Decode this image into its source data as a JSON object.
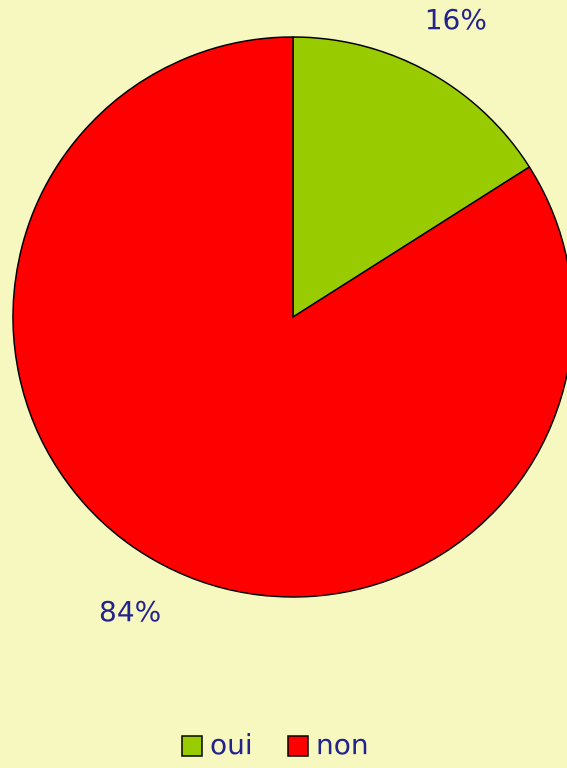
{
  "chart_data": {
    "type": "pie",
    "categories": [
      "oui",
      "non"
    ],
    "values": [
      16,
      84
    ],
    "value_labels": [
      "16%",
      "84%"
    ],
    "colors": [
      "#99cc00",
      "#ff0000"
    ],
    "legend": "bottom"
  }
}
